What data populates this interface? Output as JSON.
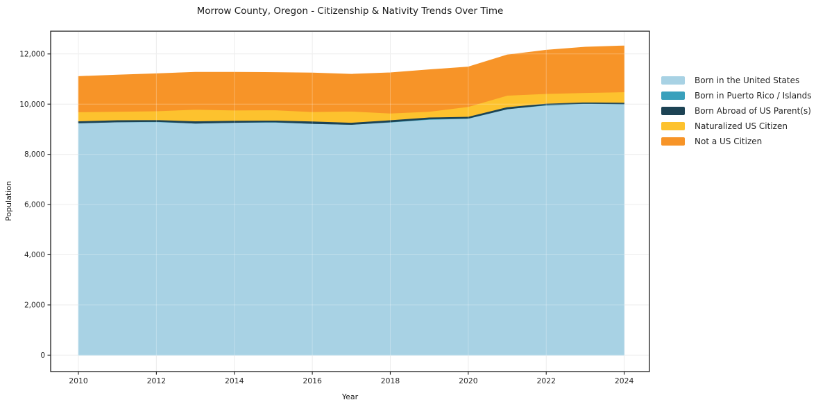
{
  "chart_data": {
    "type": "area",
    "stacked": true,
    "title": "Morrow County, Oregon - Citizenship & Nativity Trends Over Time",
    "xlabel": "Year",
    "ylabel": "Population",
    "x": [
      2010,
      2011,
      2012,
      2013,
      2014,
      2015,
      2016,
      2017,
      2018,
      2019,
      2020,
      2021,
      2022,
      2023,
      2024
    ],
    "x_ticks": [
      2010,
      2012,
      2014,
      2016,
      2018,
      2020,
      2022,
      2024
    ],
    "x_tick_labels": [
      "2010",
      "2012",
      "2014",
      "2016",
      "2018",
      "2020",
      "2022",
      "2024"
    ],
    "y_ticks": [
      0,
      2000,
      4000,
      6000,
      8000,
      10000,
      12000
    ],
    "y_tick_labels": [
      "0",
      "2,000",
      "4,000",
      "6,000",
      "8,000",
      "10,000",
      "12,000"
    ],
    "xlim": [
      2009.3,
      2024.65
    ],
    "ylim": [
      -650,
      12900
    ],
    "grid": true,
    "legend_position": "right",
    "series": [
      {
        "name": "Born in the United States",
        "color": "#a8d2e4",
        "values": [
          9250,
          9290,
          9300,
          9240,
          9270,
          9280,
          9230,
          9190,
          9280,
          9390,
          9430,
          9810,
          9960,
          10020,
          10000
        ]
      },
      {
        "name": "Born in Puerto Rico / Islands",
        "color": "#39a0bc",
        "values": [
          0,
          0,
          10,
          0,
          0,
          10,
          0,
          0,
          10,
          20,
          10,
          0,
          10,
          10,
          10
        ]
      },
      {
        "name": "Born Abroad of US Parent(s)",
        "color": "#1d4354",
        "values": [
          80,
          80,
          70,
          90,
          80,
          70,
          90,
          80,
          80,
          70,
          70,
          80,
          60,
          50,
          60
        ]
      },
      {
        "name": "Naturalized US Citizen",
        "color": "#fdc22e",
        "values": [
          360,
          340,
          350,
          460,
          410,
          410,
          380,
          450,
          270,
          230,
          390,
          460,
          390,
          380,
          420
        ]
      },
      {
        "name": "Not a US Citizen",
        "color": "#f79428",
        "values": [
          1410,
          1450,
          1480,
          1480,
          1510,
          1490,
          1540,
          1470,
          1610,
          1660,
          1580,
          1610,
          1730,
          1810,
          1830
        ]
      }
    ],
    "totals": [
      11100,
      11160,
      11210,
      11270,
      11270,
      11260,
      11240,
      11190,
      11250,
      11370,
      11480,
      11960,
      12150,
      12270,
      12320
    ]
  }
}
